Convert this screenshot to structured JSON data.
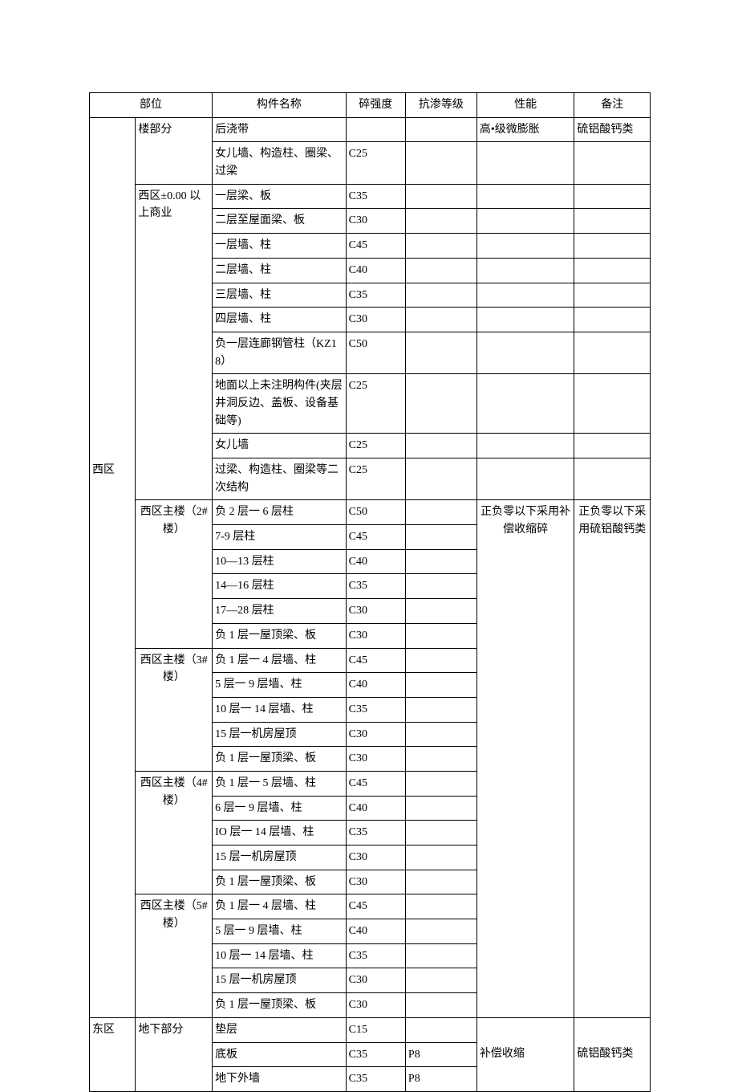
{
  "headers": {
    "area": "部位",
    "member": "构件名称",
    "strength": "碎强度",
    "perm": "抗渗等级",
    "perf": "性能",
    "note": "备注"
  },
  "area_west": "西区",
  "area_east": "东区",
  "sub_lou": "楼部分",
  "sub_west_00": "西区±0.00 以上商业",
  "sub_west_2": "西区主楼（2#楼）",
  "sub_west_3": "西区主楼（3#楼）",
  "sub_west_4": "西区主楼（4#楼）",
  "sub_west_5": "西区主楼（5#楼）",
  "sub_east_under": "地下部分",
  "r1": {
    "member": "后浇带",
    "perf": "高•级微膨胀",
    "note": "硫铝酸钙类"
  },
  "r2": {
    "member": "女儿墙、构造柱、圈梁、过梁",
    "str": "C25"
  },
  "r3": {
    "member": "一层梁、板",
    "str": "C35"
  },
  "r4": {
    "member": "二层至屋面梁、板",
    "str": "C30"
  },
  "r5": {
    "member": "一层墙、柱",
    "str": "C45"
  },
  "r6": {
    "member": "二层墙、柱",
    "str": "C40"
  },
  "r7": {
    "member": "三层墙、柱",
    "str": "C35"
  },
  "r8": {
    "member": "四层墙、柱",
    "str": "C30"
  },
  "r9": {
    "member": "负一层连廊钢管柱（KZ18）",
    "str": "C50"
  },
  "r10": {
    "member": "地面以上未注明构件(夹层井洞反边、盖板、设备基础等)",
    "str": "C25"
  },
  "r11": {
    "member": "女儿墙",
    "str": "C25"
  },
  "r12": {
    "member": "过梁、构造柱、圈梁等二次结构",
    "str": "C25"
  },
  "r13": {
    "member": "负 2 层一 6 层柱",
    "str": "C50"
  },
  "r14": {
    "member": "7-9 层柱",
    "str": "C45"
  },
  "r15": {
    "member": "10—13 层柱",
    "str": "C40"
  },
  "r16": {
    "member": "14—16 层柱",
    "str": "C35"
  },
  "r17": {
    "member": "17—28 层柱",
    "str": "C30"
  },
  "r18": {
    "member": "负 1 层一屋顶梁、板",
    "str": "C30"
  },
  "r19": {
    "member": "负 1 层一 4 层墙、柱",
    "str": "C45"
  },
  "r20": {
    "member": "5 层一 9 层墙、柱",
    "str": "C40"
  },
  "r21": {
    "member": "10 层一 14 层墙、柱",
    "str": "C35"
  },
  "r22": {
    "member": "15 层一机房屋顶",
    "str": "C30"
  },
  "r23": {
    "member": "负 1 层一屋顶梁、板",
    "str": "C30"
  },
  "r24": {
    "member": "负 1 层一 5 层墙、柱",
    "str": "C45"
  },
  "r25": {
    "member": "6 层一 9 层墙、柱",
    "str": "C40"
  },
  "r26": {
    "member": "IO 层一 14 层墙、柱",
    "str": "C35"
  },
  "r27": {
    "member": "15 层一机房屋顶",
    "str": "C30"
  },
  "r28": {
    "member": "负 1 层一屋顶梁、板",
    "str": "C30"
  },
  "r29": {
    "member": "负 1 层一 4 层墙、柱",
    "str": "C45"
  },
  "r30": {
    "member": "5 层一 9 层墙、柱",
    "str": "C40"
  },
  "r31": {
    "member": "10 层一 14 层墙、柱",
    "str": "C35"
  },
  "r32": {
    "member": "15 层一机房屋顶",
    "str": "C30"
  },
  "r33": {
    "member": "负 1 层一屋顶梁、板",
    "str": "C30"
  },
  "r34": {
    "member": "垫层",
    "str": "C15"
  },
  "r35": {
    "member": "底板",
    "str": "C35",
    "perm": "P8",
    "perf": "补偿收缩",
    "note": "硫铝酸钙类"
  },
  "r36": {
    "member": "地下外墙",
    "str": "C35",
    "perm": "P8"
  },
  "group2": {
    "perf": "正负零以下采用补偿收缩碎",
    "note": "正负零以下采用硫铝酸钙类"
  }
}
